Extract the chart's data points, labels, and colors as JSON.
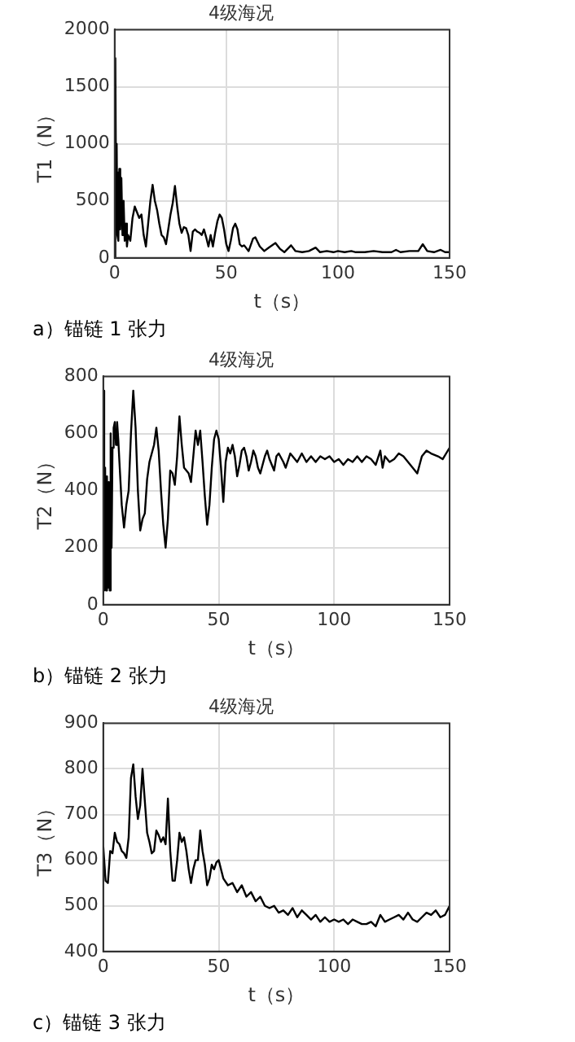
{
  "chart_data": [
    {
      "type": "line",
      "title": "4级海况",
      "xlabel": "t（s）",
      "ylabel": "T1（N）",
      "annotations": [
        "a）锚链 1 张力"
      ],
      "grid": true,
      "legend": false,
      "xlim": [
        0,
        150
      ],
      "xticks": [
        0,
        50,
        100,
        150
      ],
      "ylim": [
        0,
        2000
      ],
      "yticks": [
        0,
        500,
        1000,
        1500,
        2000
      ],
      "x": [
        0,
        0.3,
        0.6,
        0.9,
        1.2,
        1.5,
        1.8,
        2.1,
        2.5,
        3,
        3.5,
        4,
        4.5,
        5,
        5.5,
        6,
        7,
        8,
        9,
        10,
        11,
        12,
        13,
        14,
        15,
        16,
        17,
        18,
        19,
        20,
        21,
        22,
        23,
        24,
        25,
        26,
        27,
        28,
        29,
        30,
        31,
        32,
        33,
        34,
        35,
        36,
        37,
        38,
        39,
        40,
        41,
        42,
        43,
        44,
        45,
        46,
        47,
        48,
        49,
        50,
        51,
        52,
        53,
        54,
        55,
        56,
        57,
        58,
        60,
        62,
        63,
        65,
        67,
        69,
        72,
        74,
        76,
        79,
        81,
        84,
        87,
        90,
        92,
        95,
        98,
        100,
        103,
        106,
        108,
        112,
        116,
        120,
        124,
        126,
        128,
        132,
        136,
        138,
        140,
        143,
        146,
        148,
        150
      ],
      "series": [
        {
          "color": "#000000",
          "values": [
            0,
            1750,
            600,
            1000,
            200,
            750,
            150,
            780,
            250,
            700,
            200,
            500,
            150,
            300,
            100,
            200,
            150,
            350,
            450,
            400,
            350,
            380,
            200,
            100,
            300,
            500,
            640,
            500,
            420,
            300,
            200,
            180,
            120,
            250,
            380,
            480,
            630,
            450,
            300,
            220,
            270,
            260,
            200,
            60,
            230,
            250,
            230,
            220,
            200,
            250,
            180,
            100,
            200,
            100,
            220,
            320,
            380,
            350,
            250,
            120,
            60,
            150,
            260,
            300,
            250,
            120,
            100,
            110,
            60,
            170,
            180,
            100,
            60,
            90,
            130,
            80,
            50,
            110,
            60,
            50,
            60,
            90,
            50,
            60,
            50,
            60,
            50,
            60,
            50,
            50,
            60,
            50,
            50,
            70,
            50,
            60,
            60,
            120,
            60,
            50,
            70,
            50,
            50
          ]
        }
      ]
    },
    {
      "type": "line",
      "title": "4级海况",
      "xlabel": "t（s）",
      "ylabel": "T2（N）",
      "annotations": [
        "b）锚链 2 张力"
      ],
      "grid": true,
      "legend": false,
      "xlim": [
        0,
        150
      ],
      "xticks": [
        0,
        50,
        100,
        150
      ],
      "ylim": [
        0,
        800
      ],
      "yticks": [
        0,
        200,
        400,
        600,
        800
      ],
      "x": [
        0,
        0.4,
        0.8,
        1.2,
        1.6,
        2,
        2.4,
        2.8,
        3.2,
        3.6,
        4,
        4.5,
        5,
        5.5,
        6,
        6.5,
        7,
        8,
        9,
        10,
        11,
        12,
        13,
        14,
        15,
        16,
        17,
        18,
        19,
        20,
        22,
        23,
        24,
        25,
        26,
        27,
        28,
        29,
        30,
        31,
        32,
        33,
        34,
        35,
        37,
        38,
        40,
        41,
        42,
        43,
        44,
        45,
        46,
        47,
        48,
        49,
        50,
        51,
        52,
        53,
        54,
        55,
        56,
        57,
        58,
        59,
        60,
        61,
        62,
        63,
        64,
        65,
        66,
        67,
        68,
        70,
        71,
        72,
        74,
        75,
        76,
        78,
        79,
        81,
        82,
        84,
        86,
        88,
        90,
        92,
        94,
        96,
        98,
        100,
        102,
        104,
        106,
        108,
        110,
        112,
        114,
        116,
        118,
        120,
        121,
        122,
        124,
        126,
        128,
        130,
        132,
        134,
        136,
        138,
        140,
        142,
        145,
        147,
        150
      ],
      "series": [
        {
          "color": "#000000",
          "values": [
            750,
            50,
            480,
            50,
            450,
            60,
            430,
            50,
            600,
            200,
            550,
            620,
            640,
            560,
            640,
            580,
            500,
            350,
            270,
            350,
            400,
            600,
            750,
            620,
            400,
            260,
            300,
            320,
            440,
            500,
            560,
            620,
            540,
            400,
            280,
            200,
            300,
            470,
            460,
            420,
            520,
            660,
            560,
            480,
            460,
            430,
            610,
            560,
            610,
            500,
            380,
            280,
            350,
            480,
            580,
            610,
            580,
            480,
            360,
            500,
            550,
            530,
            560,
            520,
            450,
            490,
            540,
            550,
            520,
            470,
            500,
            540,
            520,
            480,
            460,
            520,
            540,
            510,
            470,
            520,
            530,
            500,
            480,
            530,
            520,
            500,
            530,
            500,
            520,
            500,
            520,
            510,
            520,
            500,
            510,
            490,
            510,
            500,
            520,
            500,
            520,
            510,
            490,
            540,
            480,
            520,
            500,
            510,
            530,
            520,
            500,
            480,
            460,
            520,
            540,
            530,
            520,
            510,
            550
          ]
        }
      ]
    },
    {
      "type": "line",
      "title": "4级海况",
      "xlabel": "t（s）",
      "ylabel": "T3（N）",
      "annotations": [
        "c）锚链 3 张力"
      ],
      "grid": true,
      "legend": false,
      "xlim": [
        0,
        150
      ],
      "xticks": [
        0,
        50,
        100,
        150
      ],
      "ylim": [
        400,
        900
      ],
      "yticks": [
        400,
        500,
        600,
        700,
        800,
        900
      ],
      "x": [
        0,
        1,
        2,
        3,
        4,
        5,
        6,
        7,
        8,
        9,
        10,
        11,
        12,
        13,
        14,
        15,
        16,
        17,
        18,
        19,
        20,
        21,
        22,
        23,
        24,
        25,
        26,
        27,
        28,
        29,
        30,
        31,
        32,
        33,
        34,
        35,
        36,
        37,
        38,
        39,
        40,
        41,
        42,
        43,
        44,
        45,
        46,
        47,
        48,
        49,
        50,
        52,
        54,
        56,
        58,
        60,
        62,
        64,
        66,
        68,
        70,
        72,
        74,
        76,
        78,
        80,
        82,
        84,
        86,
        88,
        90,
        92,
        94,
        96,
        98,
        100,
        102,
        104,
        106,
        108,
        110,
        112,
        114,
        116,
        118,
        120,
        122,
        124,
        126,
        128,
        130,
        132,
        134,
        136,
        138,
        140,
        142,
        144,
        146,
        148,
        150
      ],
      "series": [
        {
          "color": "#000000",
          "values": [
            630,
            555,
            550,
            620,
            615,
            660,
            640,
            635,
            620,
            615,
            605,
            650,
            780,
            810,
            740,
            690,
            720,
            800,
            730,
            660,
            640,
            615,
            620,
            665,
            655,
            640,
            650,
            635,
            735,
            620,
            555,
            555,
            600,
            660,
            640,
            650,
            620,
            580,
            550,
            580,
            600,
            600,
            665,
            620,
            590,
            545,
            560,
            590,
            580,
            595,
            600,
            560,
            545,
            550,
            530,
            545,
            520,
            530,
            510,
            520,
            500,
            495,
            500,
            485,
            490,
            480,
            495,
            475,
            490,
            480,
            470,
            480,
            465,
            475,
            465,
            470,
            465,
            470,
            460,
            470,
            465,
            460,
            460,
            465,
            455,
            480,
            465,
            470,
            475,
            480,
            470,
            485,
            470,
            465,
            475,
            485,
            480,
            490,
            475,
            480,
            500
          ]
        }
      ]
    }
  ]
}
